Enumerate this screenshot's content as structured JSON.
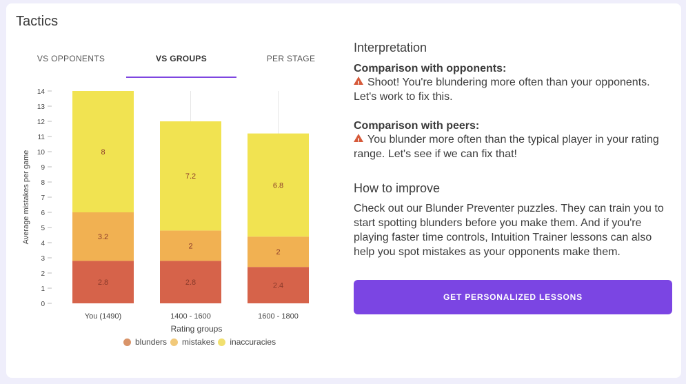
{
  "card": {
    "title": "Tactics"
  },
  "tabs": [
    {
      "label": "VS OPPONENTS",
      "active": false
    },
    {
      "label": "VS GROUPS",
      "active": true
    },
    {
      "label": "PER STAGE",
      "active": false
    }
  ],
  "interpretation": {
    "heading": "Interpretation",
    "opponents_title": "Comparison with opponents:",
    "opponents_text": "Shoot! You're blundering more often than your opponents. Let's work to fix this.",
    "peers_title": "Comparison with peers:",
    "peers_text": "You blunder more often than the typical player in your rating range. Let's see if we can fix that!",
    "improve_heading": "How to improve",
    "improve_text": "Check out our Blunder Preventer puzzles. They can train you to start spotting blunders before you make them. And if you're playing faster time controls, Intuition Trainer lessons can also help you spot mistakes as your opponents make them.",
    "warning_icon": "warning-triangle-icon"
  },
  "cta": {
    "label": "GET PERSONALIZED LESSONS"
  },
  "colors": {
    "blunders": "#d6634a",
    "mistakes": "#f1b152",
    "inaccuracies": "#f1e351",
    "accent": "#7b45e3"
  },
  "chart_data": {
    "type": "bar",
    "stacked": true,
    "categories": [
      "You (1490)",
      "1400 - 1600",
      "1600 - 1800"
    ],
    "series": [
      {
        "name": "blunders",
        "values": [
          2.8,
          2.8,
          2.4
        ]
      },
      {
        "name": "mistakes",
        "values": [
          3.2,
          2,
          2
        ]
      },
      {
        "name": "inaccuracies",
        "values": [
          8,
          7.2,
          6.8
        ]
      }
    ],
    "xlabel": "Rating groups",
    "ylabel": "Average mistakes per game",
    "ylim": [
      0,
      14
    ],
    "yticks": [
      "0",
      "1",
      "2",
      "3",
      "4",
      "5",
      "6",
      "7",
      "8",
      "9",
      "10",
      "11",
      "12",
      "13",
      "14"
    ],
    "legend_position": "bottom",
    "grid": "vertical"
  }
}
